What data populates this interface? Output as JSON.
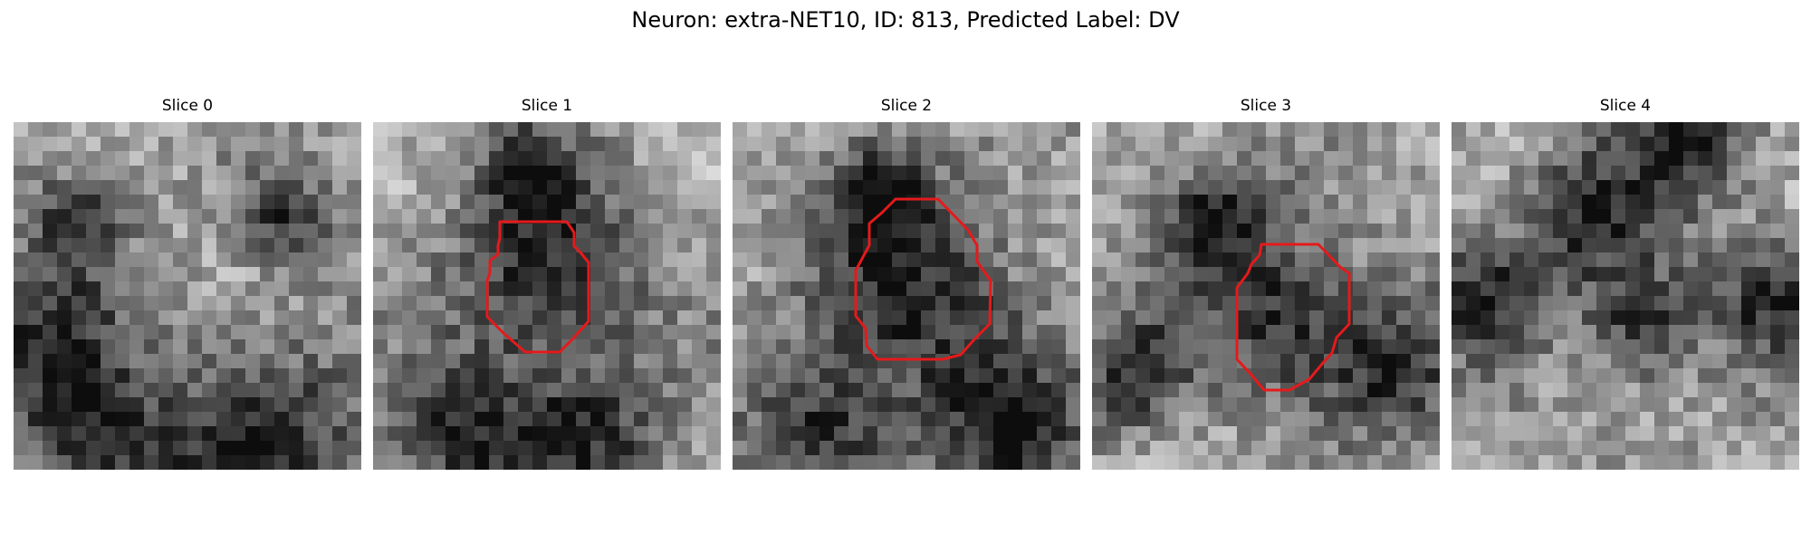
{
  "figure": {
    "title": "Neuron: extra-NET10, ID: 813, Predicted Label: DV"
  },
  "colors": {
    "outline": "#e41a1c",
    "background": "#ffffff"
  },
  "panels": [
    {
      "title": "Slice 0",
      "has_outline": false,
      "seed": 11,
      "dark_blobs": [
        [
          0.18,
          0.28,
          0.1
        ],
        [
          0.78,
          0.27,
          0.09
        ],
        [
          0.08,
          0.65,
          0.16
        ],
        [
          0.72,
          0.93,
          0.22
        ],
        [
          0.25,
          0.95,
          0.15
        ]
      ]
    },
    {
      "title": "Slice 1",
      "has_outline": true,
      "seed": 23,
      "dark_blobs": [
        [
          0.5,
          0.44,
          0.2
        ],
        [
          0.45,
          0.14,
          0.09
        ],
        [
          0.28,
          0.92,
          0.15
        ],
        [
          0.62,
          0.9,
          0.14
        ]
      ]
    },
    {
      "title": "Slice 2",
      "has_outline": true,
      "seed": 37,
      "dark_blobs": [
        [
          0.52,
          0.5,
          0.22
        ],
        [
          0.42,
          0.2,
          0.1
        ],
        [
          0.27,
          0.9,
          0.14
        ],
        [
          0.8,
          0.88,
          0.16
        ]
      ]
    },
    {
      "title": "Slice 3",
      "has_outline": true,
      "seed": 41,
      "dark_blobs": [
        [
          0.57,
          0.55,
          0.17
        ],
        [
          0.35,
          0.28,
          0.12
        ],
        [
          0.12,
          0.72,
          0.12
        ],
        [
          0.88,
          0.7,
          0.13
        ]
      ]
    },
    {
      "title": "Slice 4",
      "has_outline": false,
      "seed": 53,
      "dark_blobs": [
        [
          0.4,
          0.26,
          0.14
        ],
        [
          0.55,
          0.58,
          0.12
        ],
        [
          0.1,
          0.5,
          0.12
        ],
        [
          0.92,
          0.5,
          0.12
        ],
        [
          0.7,
          0.05,
          0.12
        ]
      ]
    }
  ]
}
